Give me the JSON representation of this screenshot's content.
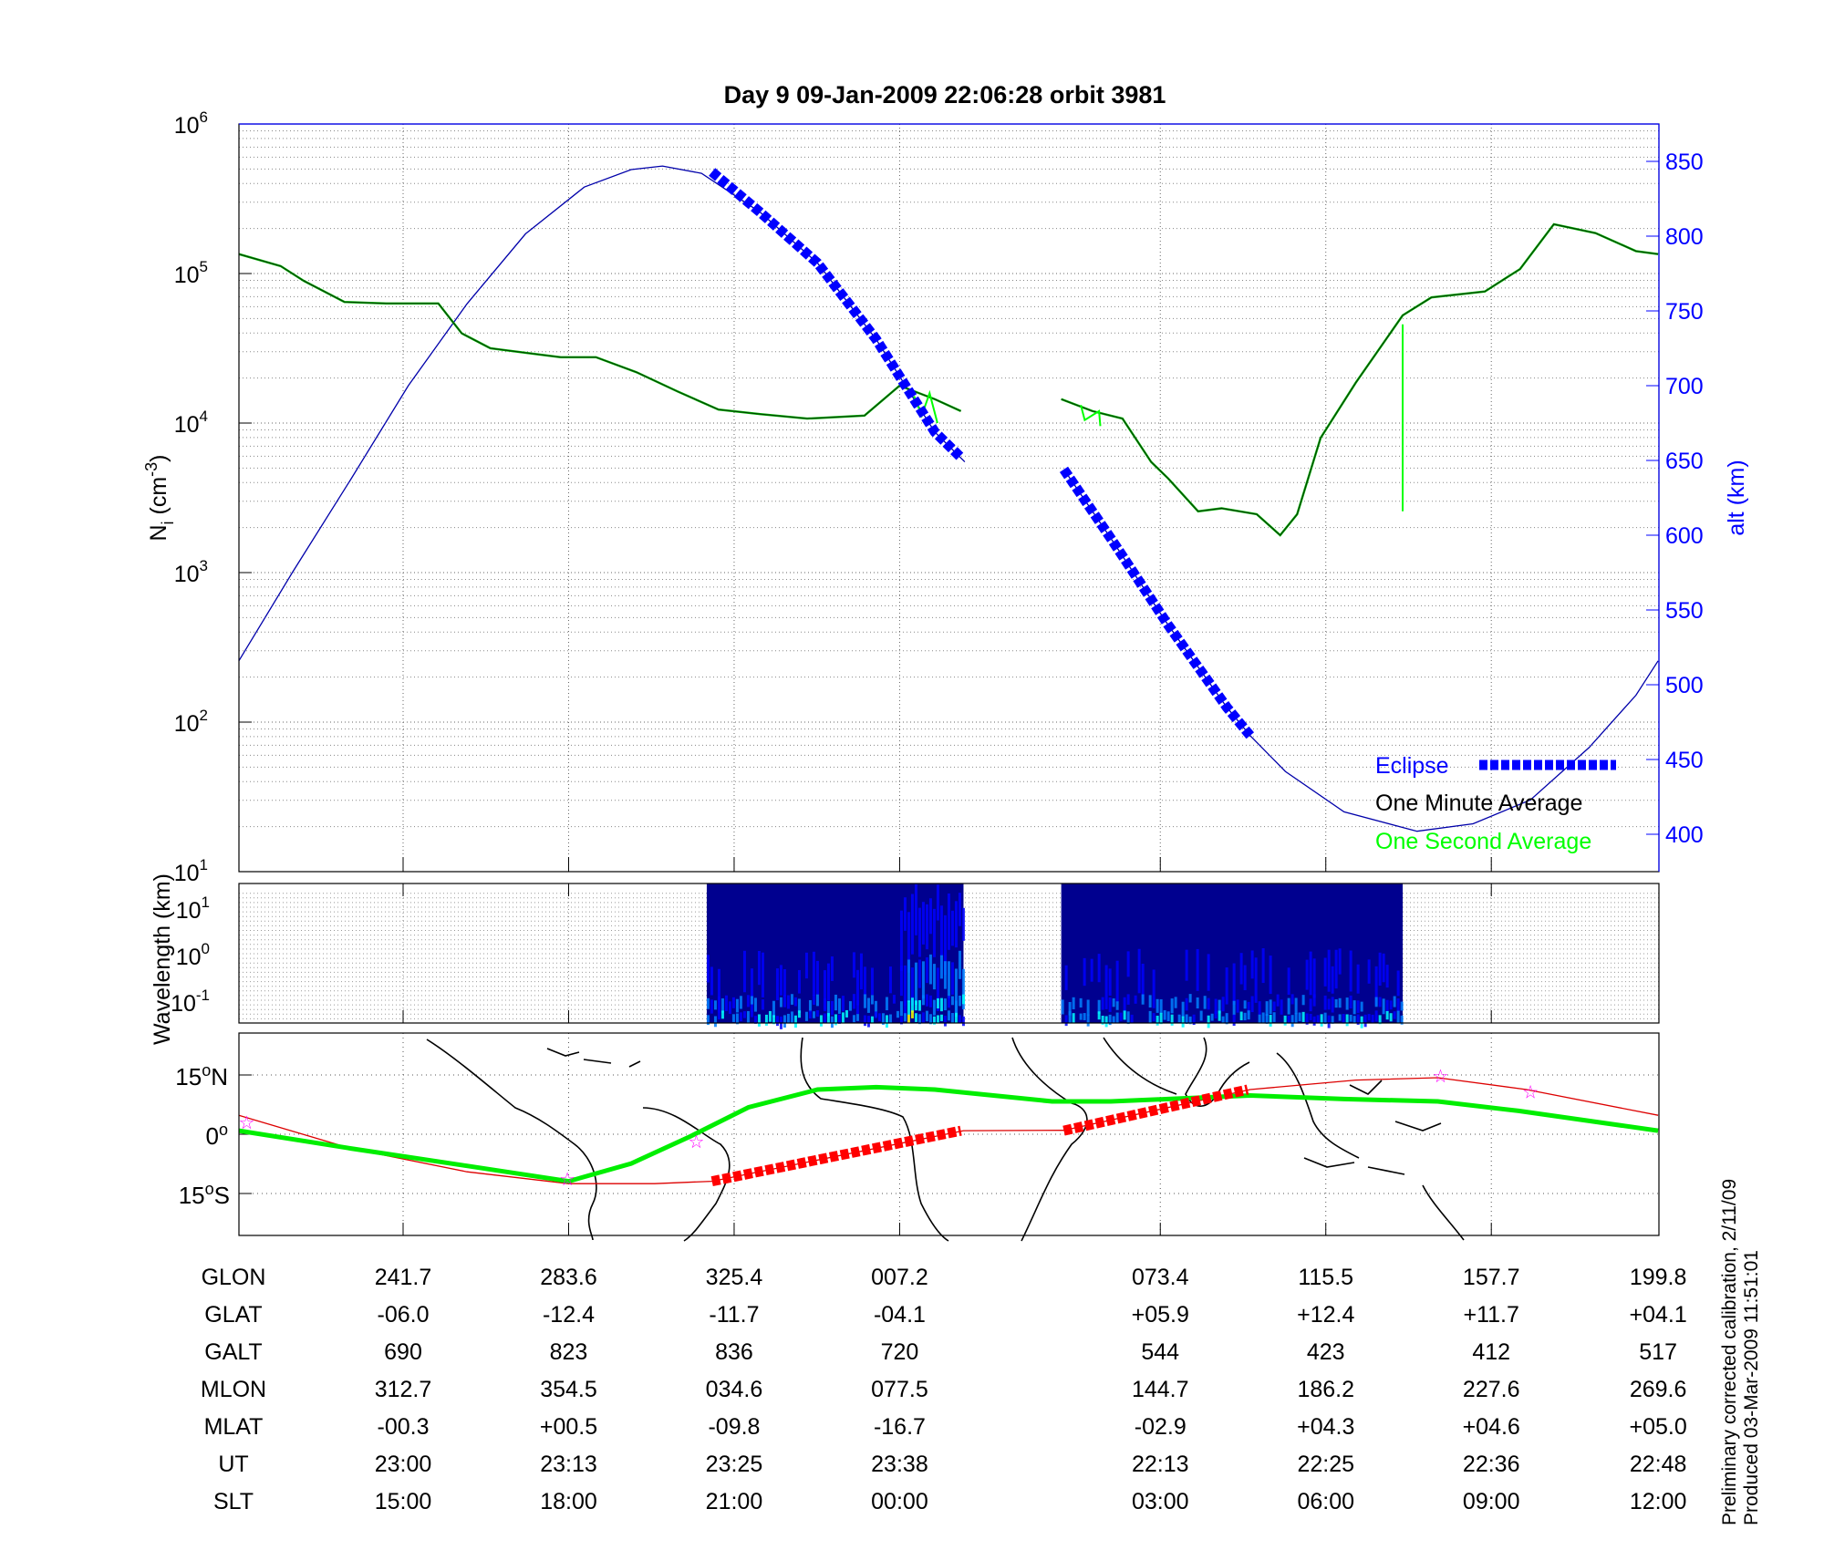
{
  "chart_data": [
    {
      "type": "line",
      "panel": "ion-density",
      "title": "Day 9  09-Jan-2009 22:06:28   orbit 3981",
      "xlabel": "",
      "x_units": "minutes elapsed from 23:00 UT (plot time axis)",
      "xlim": [
        -12.6,
        96.3
      ],
      "ylabel": "N",
      "ylabel_sub": "i",
      "ylabel_units": " (cm",
      "ylabel_exp": "-3",
      "ylabel_close": ")",
      "yscale": "log",
      "ylim": [
        10,
        1000000
      ],
      "y_ticks": [
        {
          "base": "10",
          "exp": "1",
          "v": 1
        },
        {
          "base": "10",
          "exp": "2",
          "v": 2
        },
        {
          "base": "10",
          "exp": "3",
          "v": 3
        },
        {
          "base": "10",
          "exp": "4",
          "v": 4
        },
        {
          "base": "10",
          "exp": "5",
          "v": 5
        },
        {
          "base": "10",
          "exp": "6",
          "v": 6
        }
      ],
      "y2label": "alt (km)",
      "y2lim": [
        376,
        876
      ],
      "y2_ticks": [
        "400",
        "450",
        "500",
        "550",
        "600",
        "650",
        "700",
        "750",
        "800",
        "850"
      ],
      "grid": true,
      "legend_position": "bottom-right",
      "legend": [
        {
          "label": "Eclipse",
          "color": "#0000ff"
        },
        {
          "label": "One Minute Average",
          "color": "#000000"
        },
        {
          "label": "One Second Average",
          "color": "#00ff00"
        }
      ],
      "series": [
        {
          "name": "One Minute Average (log10 Ni)",
          "color": "#000000",
          "segments": [
            [
              [
                -12.6,
                5.13
              ],
              [
                -9.4,
                5.05
              ],
              [
                -7.6,
                4.95
              ],
              [
                -4.5,
                4.81
              ],
              [
                -1.3,
                4.8
              ],
              [
                2.7,
                4.8
              ],
              [
                4.5,
                4.6
              ],
              [
                6.7,
                4.5
              ],
              [
                9.4,
                4.47
              ],
              [
                12.1,
                4.44
              ],
              [
                14.8,
                4.44
              ],
              [
                17.9,
                4.34
              ],
              [
                21.1,
                4.21
              ],
              [
                24.2,
                4.09
              ],
              [
                27.4,
                4.06
              ],
              [
                31.0,
                4.03
              ],
              [
                35.4,
                4.05
              ],
              [
                38.1,
                4.25
              ],
              [
                40.8,
                4.16
              ],
              [
                42.8,
                4.08
              ]
            ],
            [
              [
                50.5,
                4.16
              ],
              [
                52.9,
                4.08
              ],
              [
                55.2,
                4.03
              ],
              [
                57.4,
                3.74
              ],
              [
                58.7,
                3.63
              ],
              [
                61.0,
                3.41
              ],
              [
                62.8,
                3.43
              ],
              [
                65.5,
                3.39
              ],
              [
                67.3,
                3.25
              ],
              [
                68.6,
                3.39
              ],
              [
                70.4,
                3.9
              ],
              [
                73.1,
                4.27
              ],
              [
                76.7,
                4.72
              ],
              [
                78.9,
                4.84
              ],
              [
                83.0,
                4.88
              ],
              [
                85.7,
                5.03
              ],
              [
                88.3,
                5.33
              ],
              [
                91.5,
                5.27
              ],
              [
                94.6,
                5.15
              ],
              [
                96.3,
                5.13
              ]
            ]
          ]
        },
        {
          "name": "One Second Average spike (log10 Ni)",
          "color": "#00ff00",
          "segments": [
            [
              [
                76.7,
                4.66
              ],
              [
                76.7,
                3.41
              ]
            ],
            [
              [
                39.2,
                4.18
              ],
              [
                39.8,
                4.05
              ],
              [
                40.4,
                4.2
              ],
              [
                41.0,
                4.0
              ]
            ],
            [
              [
                52.0,
                4.12
              ],
              [
                52.3,
                4.02
              ],
              [
                53.4,
                4.08
              ],
              [
                53.5,
                3.98
              ]
            ]
          ]
        },
        {
          "name": "Altitude (km)",
          "color": "#0000aa",
          "axis": "y2",
          "segments": [
            [
              [
                -12.6,
                516
              ],
              [
                -8.5,
                575
              ],
              [
                -4.0,
                637.5
              ],
              [
                0.4,
                700
              ],
              [
                4.9,
                754.7
              ],
              [
                9.4,
                801.6
              ],
              [
                13.9,
                832.8
              ],
              [
                17.5,
                844.5
              ],
              [
                19.9,
                846.9
              ],
              [
                22.9,
                842
              ],
              [
                27.4,
                816
              ],
              [
                31.8,
                782
              ],
              [
                36.3,
                731
              ],
              [
                40.8,
                669
              ],
              [
                43.1,
                649
              ]
            ],
            [
              [
                50.7,
                644
              ],
              [
                54.3,
                598
              ],
              [
                58.7,
                540
              ],
              [
                63.2,
                485
              ],
              [
                65.0,
                466
              ],
              [
                67.7,
                442
              ],
              [
                72.2,
                415
              ],
              [
                77.8,
                402
              ],
              [
                82.1,
                407
              ],
              [
                86.5,
                423
              ],
              [
                91.0,
                458
              ],
              [
                94.6,
                493
              ],
              [
                96.3,
                516
              ]
            ]
          ]
        },
        {
          "name": "Eclipse (km)",
          "color": "#0000ff",
          "axis": "y2",
          "segments": [
            [
              [
                23.7,
                843
              ],
              [
                27.4,
                816
              ],
              [
                31.8,
                782
              ],
              [
                36.3,
                731
              ],
              [
                40.8,
                669
              ],
              [
                42.8,
                652
              ]
            ],
            [
              [
                50.7,
                644
              ],
              [
                54.3,
                598
              ],
              [
                58.7,
                540
              ],
              [
                63.2,
                485
              ],
              [
                65.0,
                466
              ]
            ]
          ]
        }
      ]
    },
    {
      "type": "heatmap",
      "panel": "spectrogram",
      "ylabel": "Wavelength (km)",
      "yscale": "log",
      "y_ticks": [
        {
          "base": "10",
          "exp": "-1"
        },
        {
          "base": "10",
          "exp": "0"
        },
        {
          "base": "10",
          "exp": "1"
        }
      ],
      "data_intervals": [
        [
          23.3,
          43.0
        ],
        [
          50.5,
          76.7
        ]
      ],
      "colormap": [
        "#00008f",
        "#0000ff",
        "#0080ff",
        "#00ffff",
        "#ffff00"
      ]
    },
    {
      "type": "line",
      "panel": "ground-track-map",
      "y_ticks": [
        {
          "label": "15",
          "suffix": "N",
          "lat": 15
        },
        {
          "label": "0",
          "suffix": "",
          "lat": 0
        },
        {
          "label": "15",
          "suffix": "S",
          "lat": -15
        }
      ],
      "ylim": [
        -25,
        26.5
      ],
      "series": [
        {
          "name": "Ground track",
          "color": "#00ee00",
          "points": [
            [
              -12.6,
              0.9
            ],
            [
              -4.0,
              -3.6
            ],
            [
              4.9,
              -8.0
            ],
            [
              12.7,
              -11.9
            ],
            [
              17.5,
              -7.4
            ],
            [
              22.0,
              -0.6
            ],
            [
              26.5,
              6.8
            ],
            [
              31.8,
              11.3
            ],
            [
              36.3,
              11.9
            ],
            [
              40.8,
              11.3
            ],
            [
              45.3,
              9.8
            ],
            [
              49.8,
              8.3
            ],
            [
              54.3,
              8.3
            ],
            [
              58.7,
              8.9
            ],
            [
              65.0,
              9.8
            ],
            [
              72.2,
              8.9
            ],
            [
              79.4,
              8.3
            ],
            [
              85.6,
              5.9
            ],
            [
              96.3,
              0.9
            ]
          ]
        },
        {
          "name": "Magnetic equator track",
          "color": "#dd0000",
          "points": [
            [
              -12.6,
              4.8
            ],
            [
              -4.0,
              -3.6
            ],
            [
              4.9,
              -9.5
            ],
            [
              12.7,
              -12.5
            ],
            [
              19.3,
              -12.5
            ],
            [
              23.7,
              -11.9
            ],
            [
              43.0,
              0.9
            ],
            [
              50.7,
              1.0
            ],
            [
              65.0,
              11.3
            ],
            [
              73.1,
              13.7
            ],
            [
              79.4,
              14.3
            ],
            [
              86.2,
              11.3
            ],
            [
              96.3,
              4.8
            ]
          ]
        },
        {
          "name": "Eclipse track",
          "color": "#ff0000",
          "segments": [
            [
              [
                23.7,
                -11.9
              ],
              [
                42.8,
                0.9
              ]
            ],
            [
              [
                50.7,
                0.9
              ],
              [
                64.8,
                11.3
              ]
            ]
          ]
        },
        {
          "name": "Markers",
          "color": "#ff00ff",
          "points": [
            [
              -12.0,
              3.0
            ],
            [
              12.6,
              -11.3
            ],
            [
              22.5,
              -1.8
            ],
            [
              79.6,
              14.8
            ],
            [
              86.5,
              10.7
            ]
          ]
        }
      ]
    }
  ],
  "table": {
    "tick_minutes": [
      0,
      12.7,
      25.4,
      38.1,
      58.1,
      70.8,
      83.5,
      96.3
    ],
    "rows": [
      {
        "label": "GLON",
        "values": [
          "241.7",
          "283.6",
          "325.4",
          "007.2",
          "073.4",
          "115.5",
          "157.7",
          "199.8"
        ]
      },
      {
        "label": "GLAT",
        "values": [
          "-06.0",
          "-12.4",
          "-11.7",
          "-04.1",
          "+05.9",
          "+12.4",
          "+11.7",
          "+04.1"
        ]
      },
      {
        "label": "GALT",
        "values": [
          "690",
          "823",
          "836",
          "720",
          "544",
          "423",
          "412",
          "517"
        ]
      },
      {
        "label": "MLON",
        "values": [
          "312.7",
          "354.5",
          "034.6",
          "077.5",
          "144.7",
          "186.2",
          "227.6",
          "269.6"
        ]
      },
      {
        "label": "MLAT",
        "values": [
          "-00.3",
          "+00.5",
          "-09.8",
          "-16.7",
          "-02.9",
          "+04.3",
          "+04.6",
          "+05.0"
        ]
      },
      {
        "label": "UT",
        "values": [
          "23:00",
          "23:13",
          "23:25",
          "23:38",
          "22:13",
          "22:25",
          "22:36",
          "22:48"
        ]
      },
      {
        "label": "SLT",
        "values": [
          "15:00",
          "18:00",
          "21:00",
          "00:00",
          "03:00",
          "06:00",
          "09:00",
          "12:00"
        ]
      }
    ]
  },
  "footnote": {
    "line1": "Preliminary corrected calibration, 2/11/09",
    "line2": "Produced 03-Mar-2009 11:51:01"
  }
}
